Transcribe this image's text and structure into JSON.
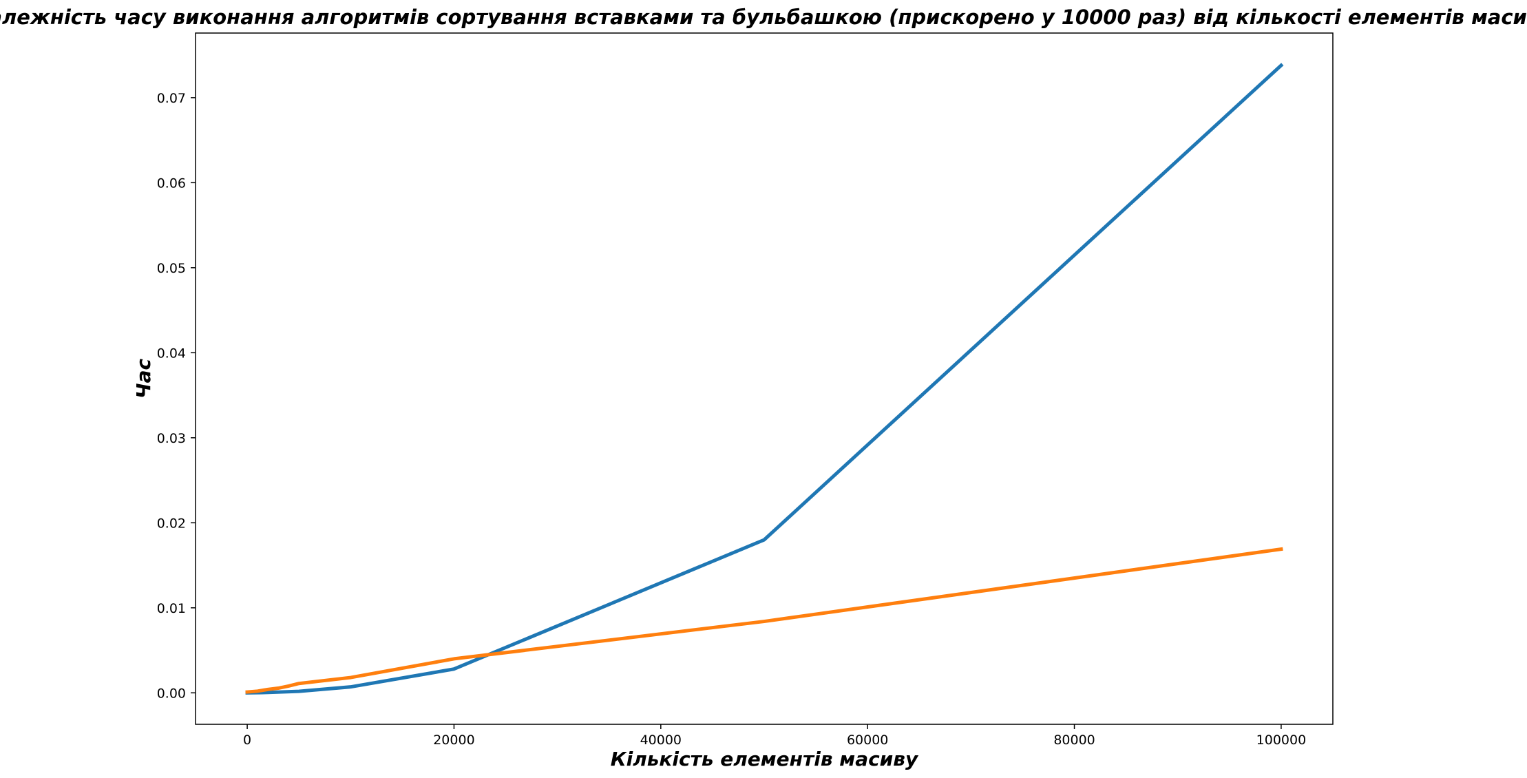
{
  "chart_data": {
    "type": "line",
    "title": "Залежність часу виконання алгоритмів сортування вставками та бульбашкою (прискорено у 10000 раз) від кількості елементів масиву",
    "xlabel": "Кількість елементів масиву",
    "ylabel": "Час",
    "xlim": [
      -5000,
      105000
    ],
    "ylim": [
      -0.0037,
      0.0776
    ],
    "x_ticks": [
      0,
      20000,
      40000,
      60000,
      80000,
      100000
    ],
    "x_tick_labels": [
      "0",
      "20000",
      "40000",
      "60000",
      "80000",
      "100000"
    ],
    "y_ticks": [
      0.0,
      0.01,
      0.02,
      0.03,
      0.04,
      0.05,
      0.06,
      0.07
    ],
    "y_tick_labels": [
      "0.00",
      "0.01",
      "0.02",
      "0.03",
      "0.04",
      "0.05",
      "0.06",
      "0.07"
    ],
    "grid": false,
    "series": [
      {
        "color": "#1f77b4",
        "points": [
          [
            0,
            0.0
          ],
          [
            1000,
            1e-05
          ],
          [
            2000,
            4e-05
          ],
          [
            5000,
            0.00018
          ],
          [
            10000,
            0.0007
          ],
          [
            20000,
            0.0028
          ],
          [
            50000,
            0.018
          ],
          [
            100000,
            0.0738
          ]
        ]
      },
      {
        "color": "#ff7f0e",
        "points": [
          [
            0,
            0.0001
          ],
          [
            1000,
            0.0002
          ],
          [
            2000,
            0.0004
          ],
          [
            3000,
            0.00055
          ],
          [
            4000,
            0.0008
          ],
          [
            5000,
            0.0011
          ],
          [
            10000,
            0.0018
          ],
          [
            20000,
            0.004
          ],
          [
            50000,
            0.0084
          ],
          [
            100000,
            0.0169
          ]
        ]
      }
    ]
  }
}
